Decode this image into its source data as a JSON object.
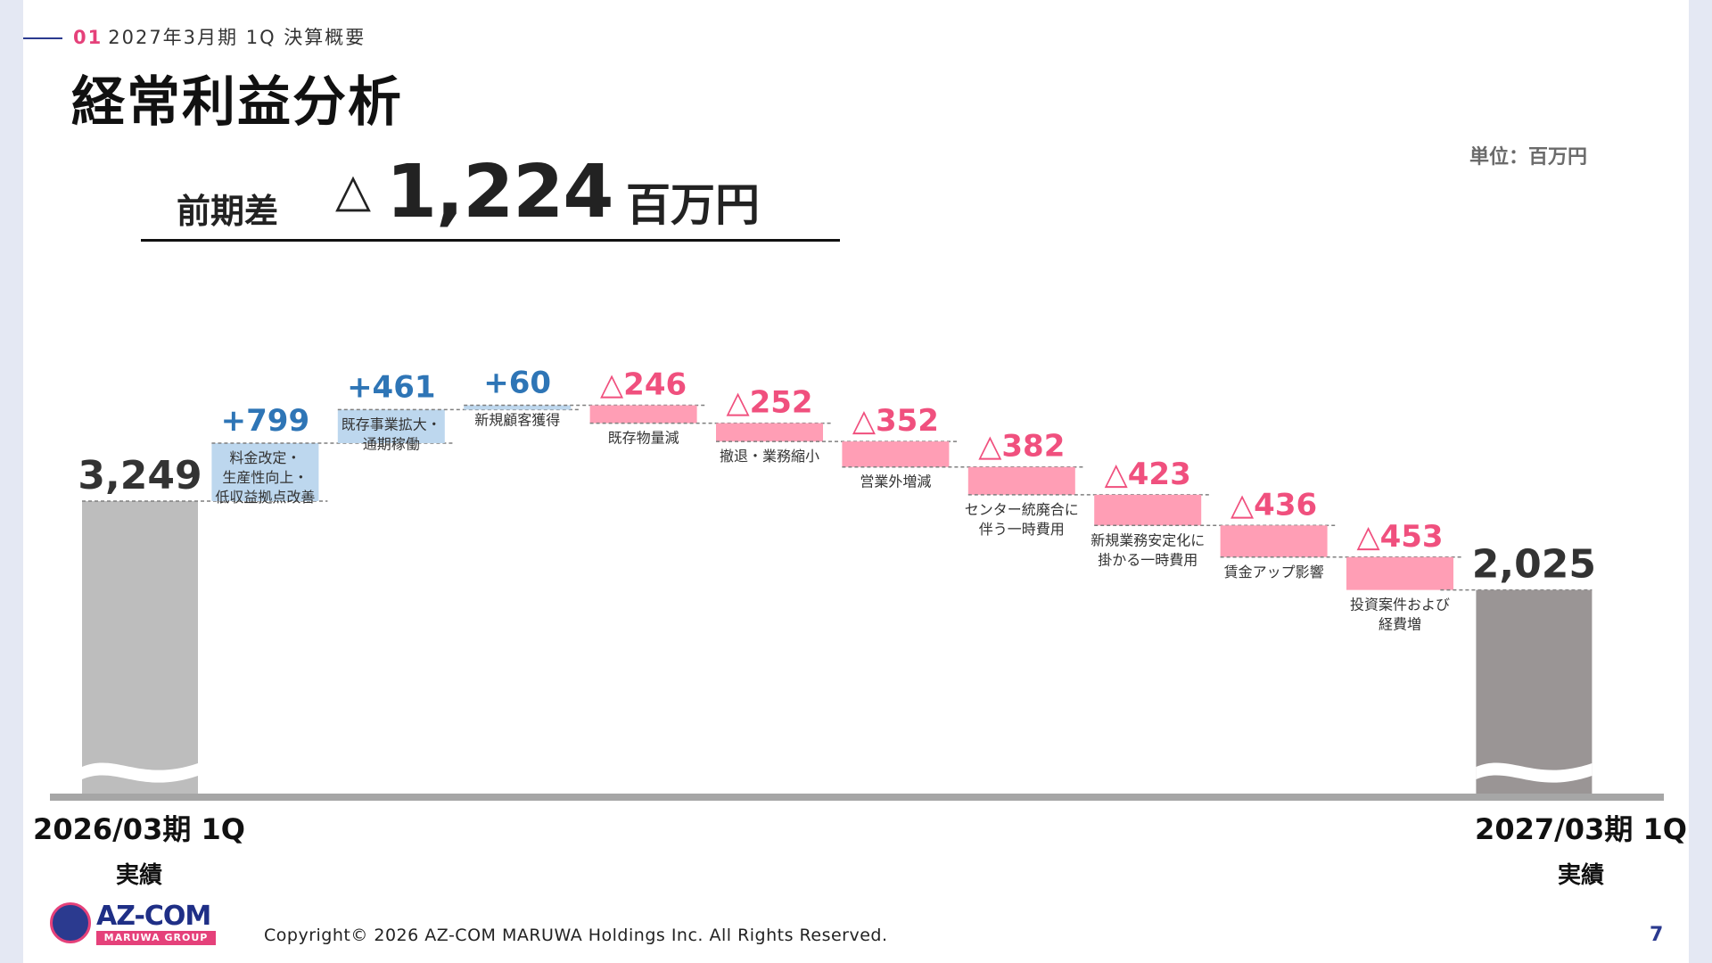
{
  "header": {
    "section_num": "01",
    "section_title": "2027年3月期 1Q 決算概要",
    "title": "経常利益分析",
    "unit": "単位：百万円"
  },
  "summary": {
    "label": "前期差",
    "symbol": "△",
    "value": "1,224",
    "unit": "百万円"
  },
  "periods": {
    "start": {
      "line1": "2026/03期 1Q",
      "line2": "実績"
    },
    "end": {
      "line1": "2027/03期 1Q",
      "line2": "実績"
    }
  },
  "colors": {
    "start_bar": "#bdbdbd",
    "end_bar": "#9a9595",
    "increase_bar": "#bdd7ee",
    "increase_label": "#2e75b6",
    "decrease_bar": "#ff9eb5",
    "decrease_label": "#f0507e",
    "total_label": "#333333",
    "axis": "#a6a6a6"
  },
  "chart_data": {
    "type": "waterfall",
    "start": {
      "value": 3249,
      "label": "3,249"
    },
    "end": {
      "value": 2025,
      "label": "2,025"
    },
    "steps": [
      {
        "value": 799,
        "label": "+799",
        "caption": [
          "料金改定・",
          "生産性向上・",
          "低収益拠点改善"
        ]
      },
      {
        "value": 461,
        "label": "+461",
        "caption": [
          "既存事業拡大・",
          "通期稼働"
        ]
      },
      {
        "value": 60,
        "label": "+60",
        "caption": [
          "新規顧客獲得"
        ]
      },
      {
        "value": -246,
        "label": "△246",
        "caption": [
          "既存物量減"
        ]
      },
      {
        "value": -252,
        "label": "△252",
        "caption": [
          "撤退・業務縮小"
        ]
      },
      {
        "value": -352,
        "label": "△352",
        "caption": [
          "営業外増減"
        ]
      },
      {
        "value": -382,
        "label": "△382",
        "caption": [
          "センター統廃合に",
          "伴う一時費用"
        ]
      },
      {
        "value": -423,
        "label": "△423",
        "caption": [
          "新規業務安定化に",
          "掛かる一時費用"
        ]
      },
      {
        "value": -436,
        "label": "△436",
        "caption": [
          "賃金アップ影響"
        ]
      },
      {
        "value": -453,
        "label": "△453",
        "caption": [
          "投資案件および",
          "経費増"
        ]
      }
    ]
  },
  "logo": {
    "name": "AZ-COM",
    "group": "MARUWA GROUP"
  },
  "footer": {
    "copyright": "Copyright© 2026 AZ-COM MARUWA Holdings Inc. All Rights Reserved.",
    "page": "7"
  }
}
